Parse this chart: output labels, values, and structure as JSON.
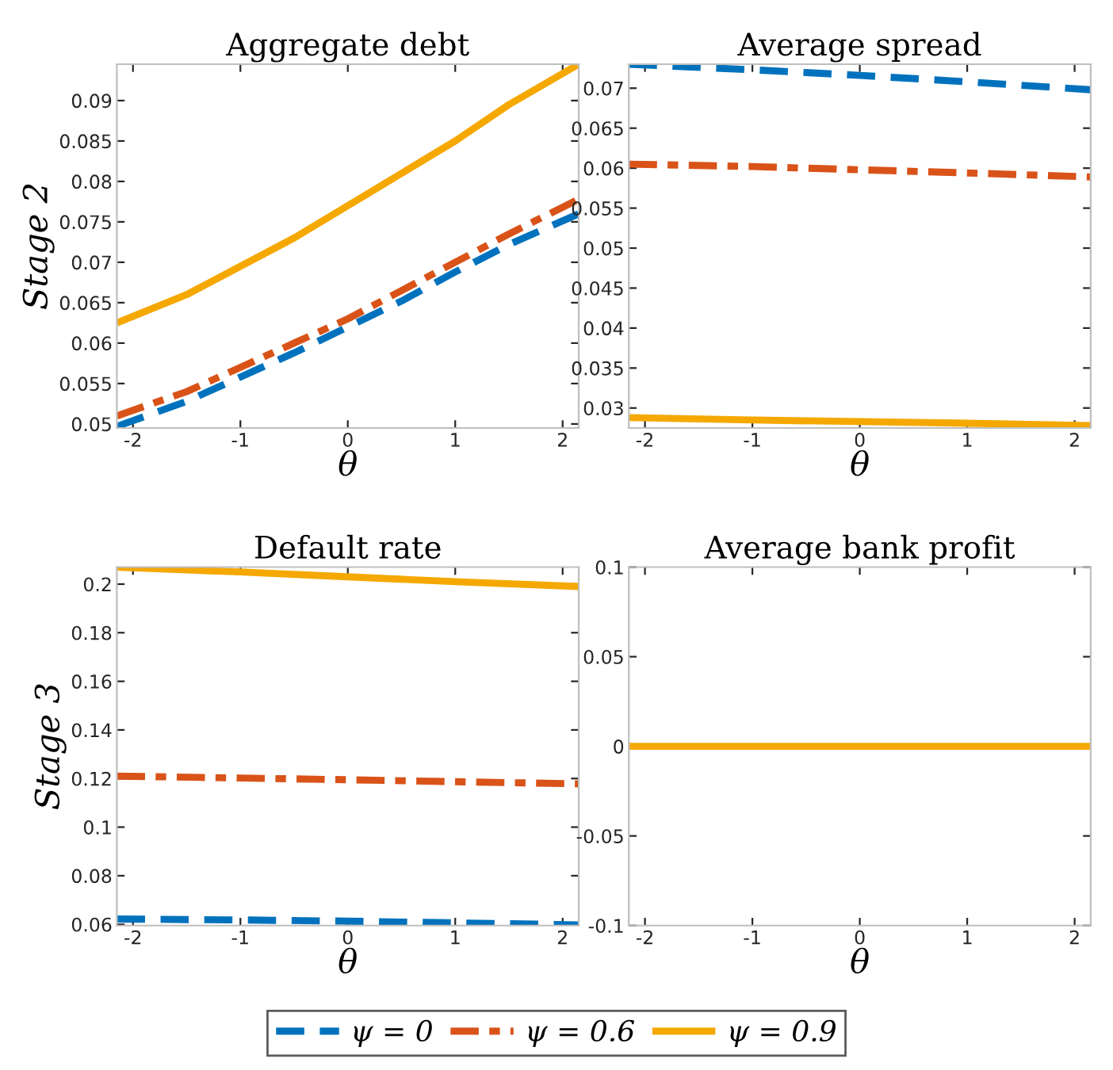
{
  "chart_data": [
    {
      "type": "line",
      "title": "Aggregate debt",
      "xlabel": "θ",
      "ylabel": "Stage 2",
      "xlim": [
        -2.15,
        2.15
      ],
      "xticks": [
        -2,
        -1,
        0,
        1,
        2
      ],
      "ylim": [
        0.0495,
        0.0945
      ],
      "yticks": [
        0.05,
        0.055,
        0.06,
        0.065,
        0.07,
        0.075,
        0.08,
        0.085,
        0.09
      ],
      "grid": false,
      "legend": "bottom",
      "x": [
        -2.15,
        -1.5,
        -1,
        -0.5,
        0,
        0.5,
        1,
        1.5,
        2.15
      ],
      "series": [
        {
          "name": "ψ = 0",
          "color": "#0072bd",
          "line_style": "dashed",
          "values": [
            0.0497,
            0.0528,
            0.0558,
            0.0588,
            0.062,
            0.0652,
            0.0688,
            0.0722,
            0.076
          ]
        },
        {
          "name": "ψ = 0.6",
          "color": "#d95319",
          "line_style": "dashdot",
          "values": [
            0.051,
            0.054,
            0.057,
            0.06,
            0.063,
            0.0665,
            0.07,
            0.0735,
            0.0778
          ]
        },
        {
          "name": "ψ = 0.9",
          "color": "#f5a800",
          "line_style": "solid",
          "values": [
            0.0625,
            0.066,
            0.0695,
            0.073,
            0.077,
            0.081,
            0.085,
            0.0895,
            0.0945
          ]
        }
      ]
    },
    {
      "type": "line",
      "title": "Average spread",
      "xlabel": "θ",
      "xlim": [
        -2.15,
        2.15
      ],
      "xticks": [
        -2,
        -1,
        0,
        1,
        2
      ],
      "ylim": [
        0.0275,
        0.073
      ],
      "yticks": [
        0.03,
        0.035,
        0.04,
        0.045,
        0.05,
        0.055,
        0.06,
        0.065,
        0.07
      ],
      "grid": false,
      "x": [
        -2.15,
        -1,
        0,
        1,
        2.15
      ],
      "series": [
        {
          "color": "#0072bd",
          "line_style": "dashed",
          "values": [
            0.073,
            0.0723,
            0.0716,
            0.0708,
            0.0698
          ]
        },
        {
          "color": "#d95319",
          "line_style": "dashdot",
          "values": [
            0.0605,
            0.0602,
            0.0598,
            0.0594,
            0.0589
          ]
        },
        {
          "color": "#f5a800",
          "line_style": "solid",
          "values": [
            0.0288,
            0.0285,
            0.0283,
            0.0281,
            0.0278
          ]
        }
      ]
    },
    {
      "type": "line",
      "title": "Default rate",
      "xlabel": "θ",
      "ylabel": "Stage 3",
      "xlim": [
        -2.15,
        2.15
      ],
      "xticks": [
        -2,
        -1,
        0,
        1,
        2
      ],
      "ylim": [
        0.0595,
        0.207
      ],
      "yticks": [
        0.06,
        0.08,
        {
          "value": 0.1,
          "label": "0.1"
        },
        0.12,
        0.14,
        0.16,
        0.18,
        {
          "value": 0.2,
          "label": "0.2"
        }
      ],
      "grid": false,
      "x": [
        -2.15,
        -1,
        0,
        1,
        2.15
      ],
      "series": [
        {
          "color": "#0072bd",
          "line_style": "dashed",
          "values": [
            0.0622,
            0.0618,
            0.0613,
            0.0606,
            0.0598
          ]
        },
        {
          "color": "#d95319",
          "line_style": "dashdot",
          "values": [
            0.121,
            0.1202,
            0.1195,
            0.1187,
            0.1178
          ]
        },
        {
          "color": "#f5a800",
          "line_style": "solid",
          "values": [
            0.207,
            0.205,
            0.203,
            0.201,
            0.199
          ]
        }
      ]
    },
    {
      "type": "line",
      "title": "Average bank profit",
      "xlabel": "θ",
      "xlim": [
        -2.15,
        2.15
      ],
      "xticks": [
        -2,
        -1,
        0,
        1,
        2
      ],
      "ylim": [
        -0.1,
        0.1
      ],
      "yticks": [
        -0.1,
        -0.05,
        0,
        0.05,
        0.1
      ],
      "grid": false,
      "x": [
        -2.15,
        -1,
        0,
        1,
        2.15
      ],
      "series": [
        {
          "color": "#0072bd",
          "line_style": "dashed",
          "values": [
            null,
            null,
            null,
            null,
            null
          ]
        },
        {
          "color": "#d95319",
          "line_style": "dashdot",
          "values": [
            null,
            null,
            null,
            null,
            null
          ]
        },
        {
          "color": "#f5a800",
          "line_style": "solid",
          "values": [
            0,
            0,
            0,
            0,
            0
          ]
        }
      ]
    }
  ]
}
